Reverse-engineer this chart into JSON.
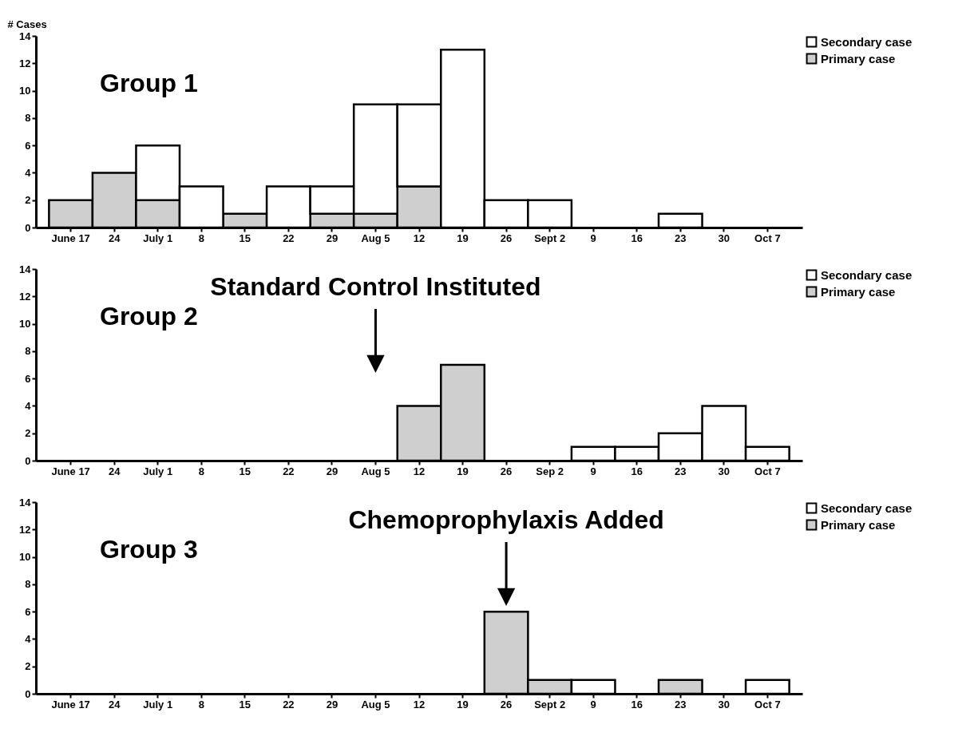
{
  "chart_data": [
    {
      "type": "bar",
      "stacked": true,
      "ylabel": "# Cases",
      "categories": [
        "June 17",
        "24",
        "July 1",
        "8",
        "15",
        "22",
        "29",
        "Aug 5",
        "12",
        "19",
        "26",
        "Sept 2",
        "9",
        "16",
        "23",
        "30",
        "Oct 7"
      ],
      "ylim": [
        0,
        14
      ],
      "yticks": [
        0,
        2,
        4,
        6,
        8,
        10,
        12,
        14
      ],
      "legend": "right",
      "annotations": [
        "Group 1"
      ],
      "series": [
        {
          "name": "Primary case",
          "color": "#cfcfcf",
          "values": [
            2,
            4,
            2,
            0,
            1,
            0,
            1,
            1,
            3,
            0,
            0,
            0,
            0,
            0,
            0,
            0,
            0
          ]
        },
        {
          "name": "Secondary case",
          "color": "#ffffff",
          "values": [
            0,
            0,
            4,
            3,
            0,
            3,
            2,
            8,
            6,
            13,
            2,
            2,
            0,
            0,
            1,
            0,
            0
          ]
        }
      ]
    },
    {
      "type": "bar",
      "stacked": true,
      "categories": [
        "June 17",
        "24",
        "July 1",
        "8",
        "15",
        "22",
        "29",
        "Aug 5",
        "12",
        "19",
        "26",
        "Sep 2",
        "9",
        "16",
        "23",
        "30",
        "Oct 7"
      ],
      "ylim": [
        0,
        14
      ],
      "yticks": [
        0,
        2,
        4,
        6,
        8,
        10,
        12,
        14
      ],
      "legend": "right",
      "annotations": [
        "Group 2",
        {
          "text": "Standard Control Instituted",
          "x": "Aug 5"
        }
      ],
      "series": [
        {
          "name": "Primary case",
          "color": "#cfcfcf",
          "values": [
            0,
            0,
            0,
            0,
            0,
            0,
            0,
            0,
            4,
            7,
            0,
            0,
            0,
            0,
            0,
            0,
            0
          ]
        },
        {
          "name": "Secondary case",
          "color": "#ffffff",
          "values": [
            0,
            0,
            0,
            0,
            0,
            0,
            0,
            0,
            0,
            0,
            0,
            0,
            1,
            1,
            2,
            4,
            1
          ]
        }
      ]
    },
    {
      "type": "bar",
      "stacked": true,
      "categories": [
        "June 17",
        "24",
        "July 1",
        "8",
        "15",
        "22",
        "29",
        "Aug 5",
        "12",
        "19",
        "26",
        "Sept 2",
        "9",
        "16",
        "23",
        "30",
        "Oct 7"
      ],
      "ylim": [
        0,
        14
      ],
      "yticks": [
        0,
        2,
        4,
        6,
        8,
        10,
        12,
        14
      ],
      "legend": "right",
      "annotations": [
        "Group 3",
        {
          "text": "Chemoprophylaxis Added",
          "x": "26"
        }
      ],
      "series": [
        {
          "name": "Primary case",
          "color": "#cfcfcf",
          "values": [
            0,
            0,
            0,
            0,
            0,
            0,
            0,
            0,
            0,
            0,
            6,
            1,
            0,
            0,
            1,
            0,
            0
          ]
        },
        {
          "name": "Secondary case",
          "color": "#ffffff",
          "values": [
            0,
            0,
            0,
            0,
            0,
            0,
            0,
            0,
            0,
            0,
            0,
            0,
            1,
            0,
            0,
            0,
            1
          ]
        }
      ]
    }
  ]
}
